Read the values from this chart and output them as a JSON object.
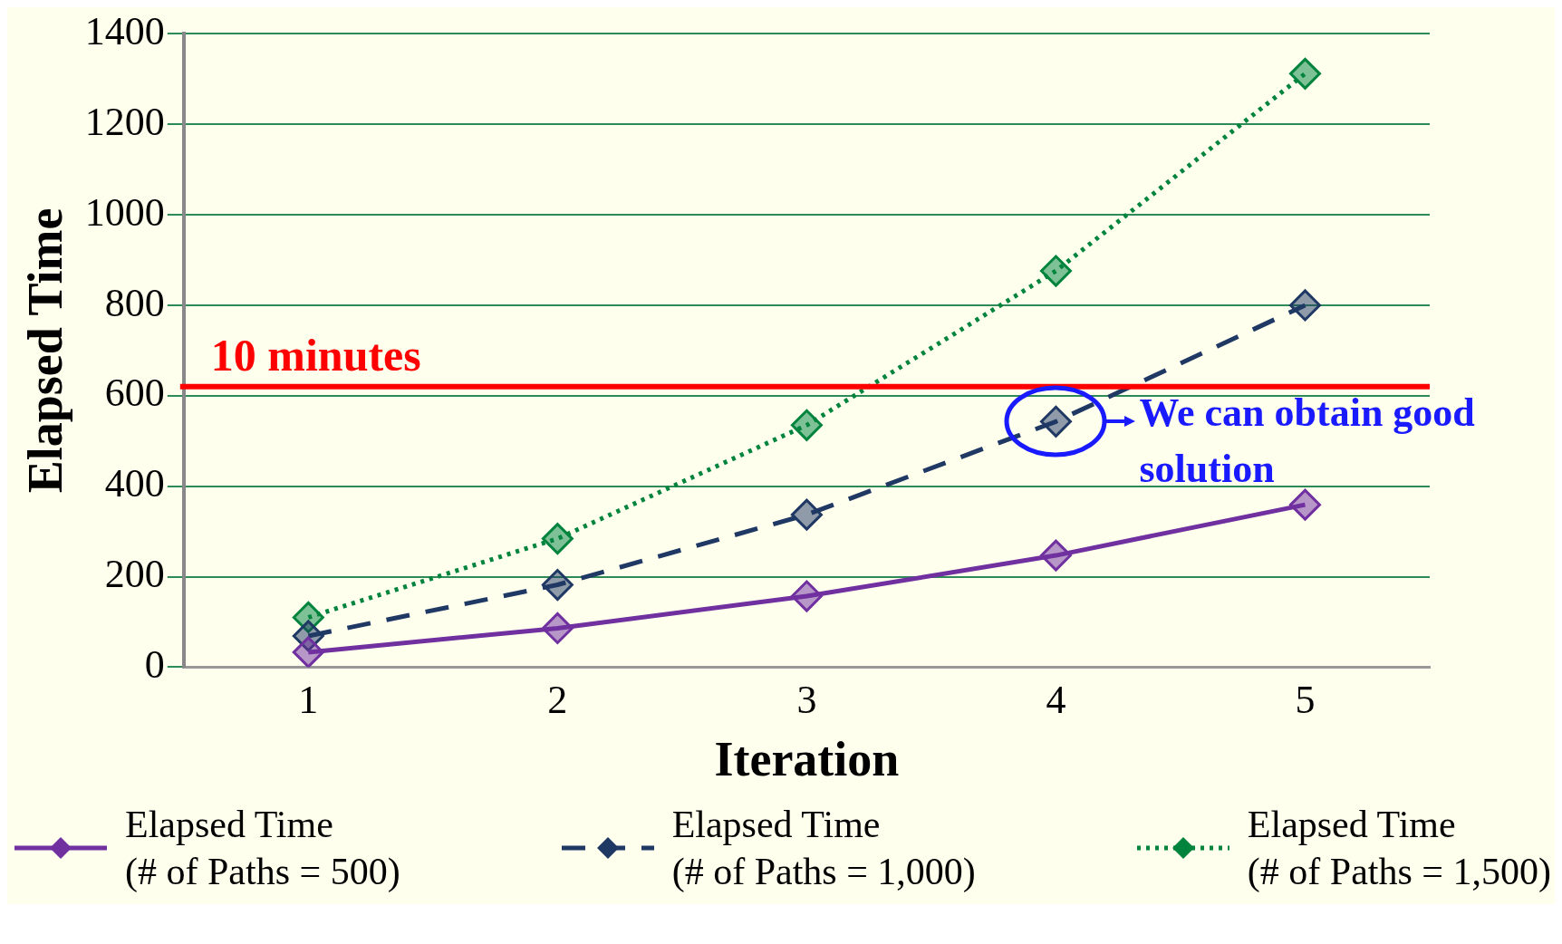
{
  "chart_data": {
    "type": "line",
    "xlabel": "Iteration",
    "ylabel": "Elapsed Time",
    "categories": [
      "1",
      "2",
      "3",
      "4",
      "5"
    ],
    "ylim": [
      0,
      1400
    ],
    "yticks": [
      0,
      200,
      400,
      600,
      800,
      1000,
      1200,
      1400
    ],
    "grid": "y",
    "legend": "bottom",
    "marker": "diamond",
    "series": [
      {
        "name": "Elapsed Time\n(# of Paths = 500)",
        "color": "#7030a0",
        "line_style": "solid",
        "values": [
          33,
          86,
          157,
          247,
          359
        ]
      },
      {
        "name": "Elapsed Time\n(# of Paths = 1,000)",
        "color": "#1f3864",
        "line_style": "dashed",
        "values": [
          69,
          182,
          337,
          543,
          800
        ]
      },
      {
        "name": "Elapsed Time\n(# of Paths = 1,500)",
        "color": "#00843d",
        "line_style": "dotted",
        "values": [
          110,
          284,
          535,
          876,
          1312
        ]
      }
    ],
    "ref_lines": [
      {
        "axis": "y",
        "value": 620,
        "label": "10 minutes",
        "color": "#ff0000"
      }
    ],
    "annotations": [
      {
        "text": "We can obtain good solution",
        "x": "4",
        "y": 543
      }
    ]
  }
}
